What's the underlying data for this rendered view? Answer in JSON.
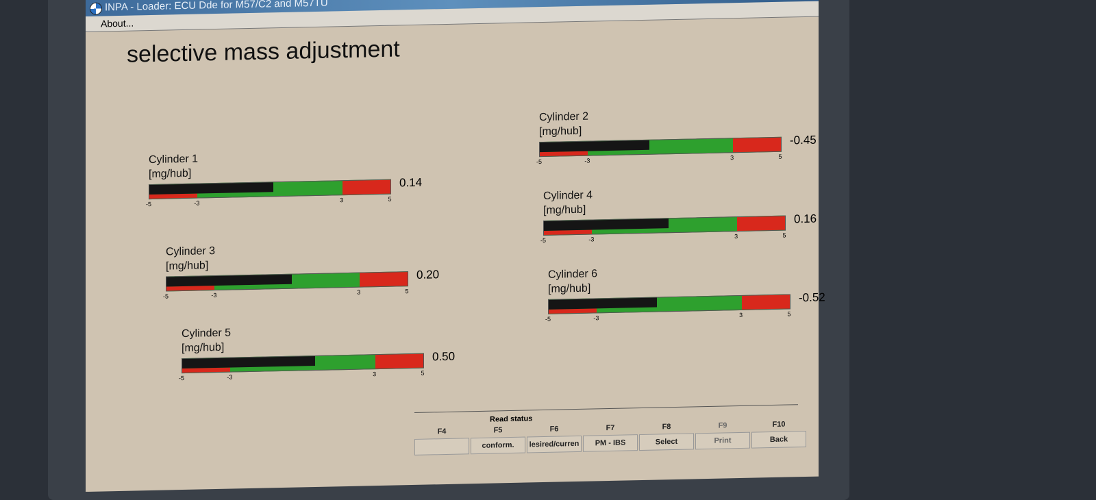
{
  "window": {
    "title": "INPA - Loader: ECU Dde for M57/C2 and M57TÜ",
    "menu": [
      "About..."
    ]
  },
  "page": {
    "title": "selective mass adjustment"
  },
  "scale": {
    "min": -5,
    "max": 5,
    "ticks": [
      "-5",
      "-3",
      "3",
      "5"
    ],
    "colors": {
      "ok": "#2ea02e",
      "limit": "#d8281c",
      "fill": "#151515"
    }
  },
  "cylinders": [
    {
      "name": "Cylinder 1",
      "unit": "[mg/hub]",
      "value": 0.14,
      "display": "0.14"
    },
    {
      "name": "Cylinder 2",
      "unit": "[mg/hub]",
      "value": -0.45,
      "display": "-0.45"
    },
    {
      "name": "Cylinder 3",
      "unit": "[mg/hub]",
      "value": 0.2,
      "display": "0.20"
    },
    {
      "name": "Cylinder 4",
      "unit": "[mg/hub]",
      "value": 0.16,
      "display": "0.16"
    },
    {
      "name": "Cylinder 5",
      "unit": "[mg/hub]",
      "value": 0.5,
      "display": "0.50"
    },
    {
      "name": "Cylinder 6",
      "unit": "[mg/hub]",
      "value": -0.52,
      "display": "-0.52"
    }
  ],
  "fkeys": {
    "group_label": "Read status",
    "keys": [
      {
        "key": "F4",
        "label": ""
      },
      {
        "key": "F5",
        "label": "conform."
      },
      {
        "key": "F6",
        "label": "lesired/curren"
      },
      {
        "key": "F7",
        "label": "PM - IBS"
      },
      {
        "key": "F8",
        "label": "Select"
      },
      {
        "key": "F9",
        "label": "Print"
      },
      {
        "key": "F10",
        "label": "Back"
      }
    ]
  }
}
